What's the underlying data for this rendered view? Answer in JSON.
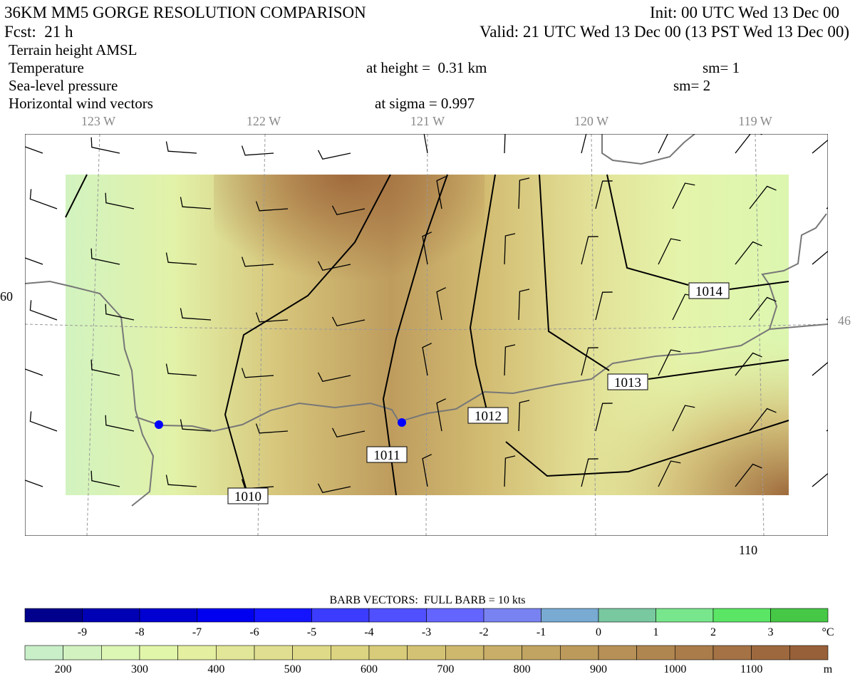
{
  "header": {
    "title": "36KM MM5 GORGE RESOLUTION COMPARISON",
    "init": "Init: 00 UTC Wed 13 Dec 00",
    "forecast": "Fcst:  21 h",
    "valid": "Valid: 21 UTC Wed 13 Dec 00 (13 PST Wed 13 Dec 00)"
  },
  "fields": [
    {
      "name": "Terrain height AMSL"
    },
    {
      "name": "Temperature",
      "level": "at height =  0.31 km",
      "smoothing": "sm= 1"
    },
    {
      "name": "Sea-level pressure",
      "smoothing": "sm= 2"
    },
    {
      "name": "Horizontal wind vectors",
      "level": "at sigma = 0.997"
    }
  ],
  "map": {
    "longitude_labels": [
      "123 W",
      "122 W",
      "121 W",
      "120 W",
      "119 W"
    ],
    "grid_labels": {
      "left": "60",
      "right": "46",
      "bottom": "110"
    },
    "isobar_labels": [
      "1010",
      "1011",
      "1012",
      "1013",
      "1014"
    ]
  },
  "legend": {
    "barb_note": "BARB VECTORS:  FULL BARB = 10 kts",
    "temperature": {
      "labels": [
        "-9",
        "-8",
        "-7",
        "-6",
        "-5",
        "-4",
        "-3",
        "-2",
        "-1",
        "0",
        "1",
        "2",
        "3"
      ],
      "unit": "°C",
      "colors": [
        "#00008c",
        "#0000b4",
        "#0000d2",
        "#0000f0",
        "#1414ff",
        "#3c3cff",
        "#5050ff",
        "#6464ff",
        "#7882f0",
        "#78aad2",
        "#78c8a0",
        "#78e68c",
        "#5ae664",
        "#46c846"
      ]
    },
    "terrain": {
      "labels": [
        "200",
        "300",
        "400",
        "500",
        "600",
        "700",
        "800",
        "900",
        "1000",
        "1100"
      ],
      "unit": "m",
      "colors": [
        "#c8efc8",
        "#d2f3c0",
        "#dcf6b4",
        "#e2f6aa",
        "#e4efa0",
        "#e2e698",
        "#e0de90",
        "#deda88",
        "#dcd480",
        "#d8cc7a",
        "#d4c274",
        "#ceb86e",
        "#c8ae68",
        "#c2a462",
        "#bc9a5c",
        "#b69056",
        "#b08650",
        "#aa7c4a",
        "#a47244",
        "#9e683e",
        "#986038"
      ]
    }
  }
}
